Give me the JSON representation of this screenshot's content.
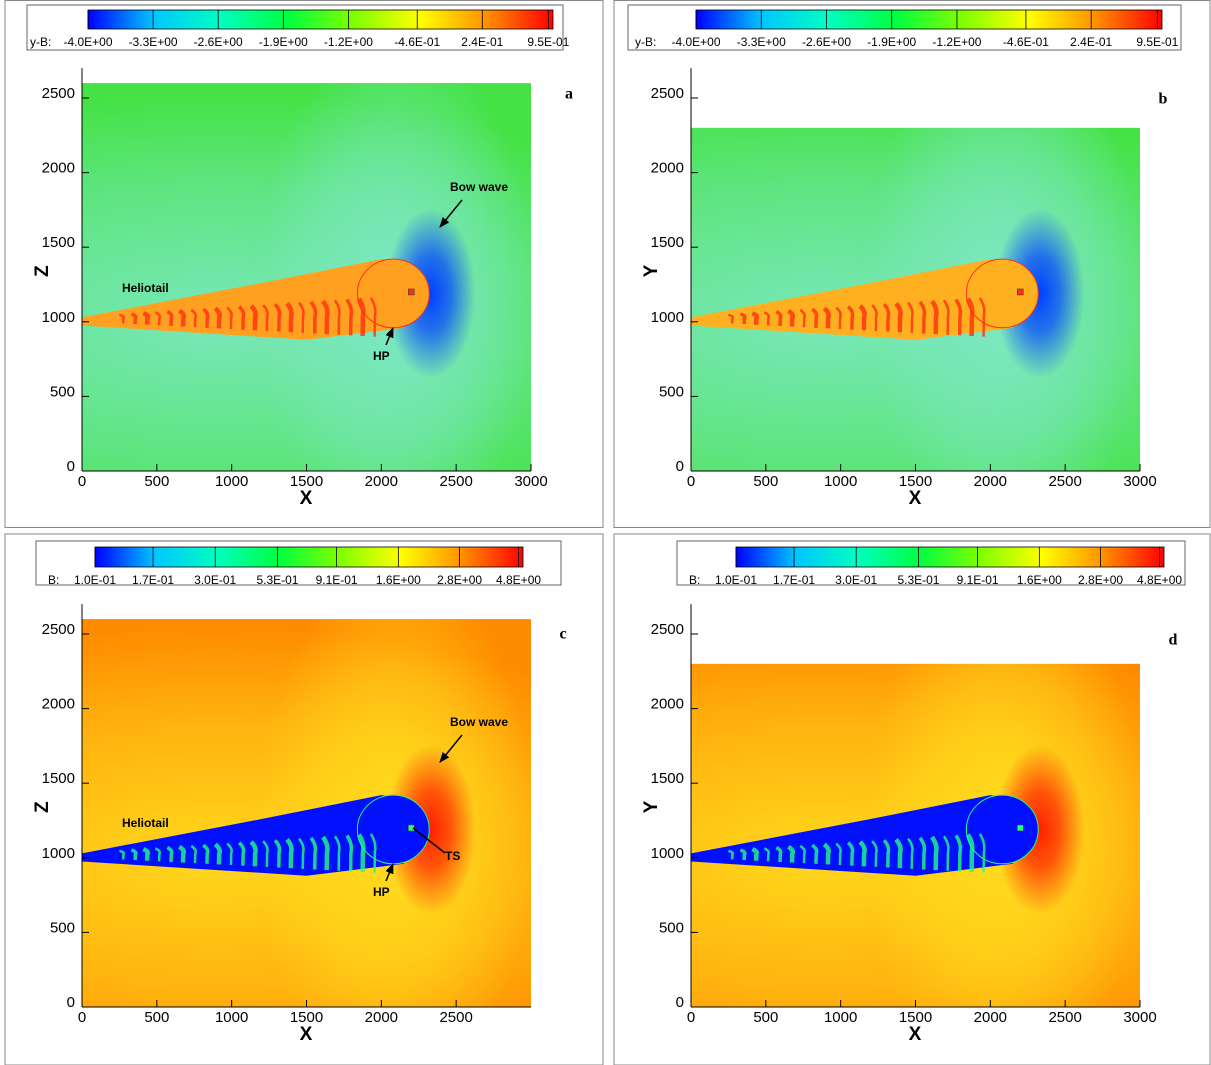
{
  "chart_data": [
    {
      "type": "contour",
      "panel_label": "a",
      "xlabel": "X",
      "ylabel": "Z",
      "xlim": [
        0,
        3000
      ],
      "ylim": [
        0,
        2700
      ],
      "xticks": [
        0,
        500,
        1000,
        1500,
        2000,
        2500,
        3000
      ],
      "yticks": [
        0,
        500,
        1000,
        1500,
        2000,
        2500
      ],
      "field_extent": {
        "x": [
          0,
          3000
        ],
        "y": [
          0,
          2600
        ]
      },
      "field_colors": {
        "background": "#44e244",
        "halo": "#7fe8c8",
        "nose": "#0040ff",
        "tail": "#ffa020",
        "streak": "#ff3010"
      },
      "colorbar": {
        "label": "y-B:",
        "log": false,
        "clim": [
          -4,
          1
        ],
        "colors": [
          "#0000ff",
          "#00c8ff",
          "#00ffc0",
          "#00ff40",
          "#80ff00",
          "#ffff00",
          "#ff9000",
          "#ff0000"
        ],
        "ticks": [
          {
            "value": -4.0,
            "label": "-4.0E+00"
          },
          {
            "value": -3.3,
            "label": "-3.3E+00"
          },
          {
            "value": -2.6,
            "label": "-2.6E+00"
          },
          {
            "value": -1.9,
            "label": "-1.9E+00"
          },
          {
            "value": -1.2,
            "label": "-1.2E+00"
          },
          {
            "value": -0.46,
            "label": "-4.6E-01"
          },
          {
            "value": 0.24,
            "label": "2.4E-01"
          },
          {
            "value": 0.95,
            "label": "9.5E-01"
          }
        ]
      },
      "annotations": [
        "Heliotail",
        "Bow wave",
        "HP"
      ]
    },
    {
      "type": "contour",
      "panel_label": "b",
      "xlabel": "X",
      "ylabel": "Y",
      "xlim": [
        0,
        3000
      ],
      "ylim": [
        0,
        2700
      ],
      "xticks": [
        0,
        500,
        1000,
        1500,
        2000,
        2500,
        3000
      ],
      "yticks": [
        0,
        500,
        1000,
        1500,
        2000,
        2500
      ],
      "field_extent": {
        "x": [
          0,
          3000
        ],
        "y": [
          0,
          2300
        ]
      },
      "field_colors": {
        "background": "#44e244",
        "halo": "#7fe8c8",
        "nose": "#0040ff",
        "tail": "#ffb020",
        "streak": "#ff3010"
      },
      "colorbar": {
        "label": "y-B:",
        "log": false,
        "clim": [
          -4,
          1
        ],
        "colors": [
          "#0000ff",
          "#00c8ff",
          "#00ffc0",
          "#00ff40",
          "#80ff00",
          "#ffff00",
          "#ff9000",
          "#ff0000"
        ],
        "ticks": [
          {
            "value": -4.0,
            "label": "-4.0E+00"
          },
          {
            "value": -3.3,
            "label": "-3.3E+00"
          },
          {
            "value": -2.6,
            "label": "-2.6E+00"
          },
          {
            "value": -1.9,
            "label": "-1.9E+00"
          },
          {
            "value": -1.2,
            "label": "-1.2E+00"
          },
          {
            "value": -0.46,
            "label": "-4.6E-01"
          },
          {
            "value": 0.24,
            "label": "2.4E-01"
          },
          {
            "value": 0.95,
            "label": "9.5E-01"
          }
        ]
      },
      "annotations": []
    },
    {
      "type": "contour",
      "panel_label": "c",
      "xlabel": "X",
      "ylabel": "Z",
      "xlim": [
        0,
        3000
      ],
      "ylim": [
        0,
        2700
      ],
      "xticks": [
        0,
        500,
        1000,
        1500,
        2000,
        2500
      ],
      "yticks": [
        0,
        500,
        1000,
        1500,
        2000,
        2500
      ],
      "field_extent": {
        "x": [
          0,
          3000
        ],
        "y": [
          0,
          2600
        ]
      },
      "field_colors": {
        "background": "#ff8c00",
        "halo": "#ffe020",
        "nose": "#ff2000",
        "tail": "#0010ff",
        "streak": "#20ff80"
      },
      "colorbar": {
        "label": "B:",
        "log": true,
        "clim": [
          0.1,
          5.0
        ],
        "colors": [
          "#0000ff",
          "#00c8ff",
          "#00ffc0",
          "#00ff40",
          "#80ff00",
          "#ffff00",
          "#ff9000",
          "#ff0000"
        ],
        "ticks": [
          {
            "value": 0.1,
            "label": "1.0E-01"
          },
          {
            "value": 0.17,
            "label": "1.7E-01"
          },
          {
            "value": 0.3,
            "label": "3.0E-01"
          },
          {
            "value": 0.53,
            "label": "5.3E-01"
          },
          {
            "value": 0.91,
            "label": "9.1E-01"
          },
          {
            "value": 1.6,
            "label": "1.6E+00"
          },
          {
            "value": 2.8,
            "label": "2.8E+00"
          },
          {
            "value": 4.8,
            "label": "4.8E+00"
          }
        ]
      },
      "annotations": [
        "Heliotail",
        "Bow wave",
        "HP",
        "TS"
      ]
    },
    {
      "type": "contour",
      "panel_label": "d",
      "xlabel": "X",
      "ylabel": "Y",
      "xlim": [
        0,
        3000
      ],
      "ylim": [
        0,
        2700
      ],
      "xticks": [
        0,
        500,
        1000,
        1500,
        2000,
        2500,
        3000
      ],
      "yticks": [
        0,
        500,
        1000,
        1500,
        2000,
        2500
      ],
      "field_extent": {
        "x": [
          0,
          3000
        ],
        "y": [
          0,
          2300
        ]
      },
      "field_colors": {
        "background": "#ff8c00",
        "halo": "#ffe020",
        "nose": "#ff2000",
        "tail": "#0010ff",
        "streak": "#20ff80"
      },
      "colorbar": {
        "label": "B:",
        "log": true,
        "clim": [
          0.1,
          5.0
        ],
        "colors": [
          "#0000ff",
          "#00c8ff",
          "#00ffc0",
          "#00ff40",
          "#80ff00",
          "#ffff00",
          "#ff9000",
          "#ff0000"
        ],
        "ticks": [
          {
            "value": 0.1,
            "label": "1.0E-01"
          },
          {
            "value": 0.17,
            "label": "1.7E-01"
          },
          {
            "value": 0.3,
            "label": "3.0E-01"
          },
          {
            "value": 0.53,
            "label": "5.3E-01"
          },
          {
            "value": 0.91,
            "label": "9.1E-01"
          },
          {
            "value": 1.6,
            "label": "1.6E+00"
          },
          {
            "value": 2.8,
            "label": "2.8E+00"
          },
          {
            "value": 4.8,
            "label": "4.8E+00"
          }
        ]
      },
      "annotations": []
    }
  ]
}
